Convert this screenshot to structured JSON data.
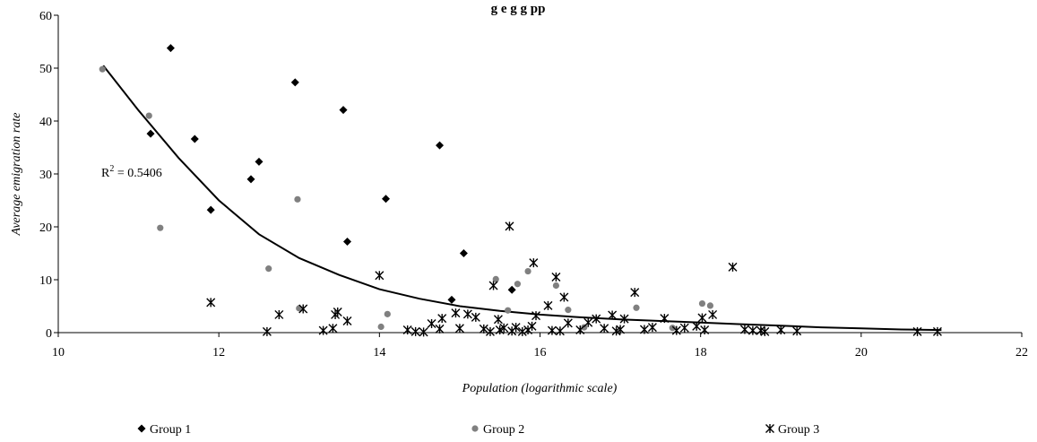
{
  "chart_data": {
    "type": "scatter",
    "title": "g  e  g  g     pp",
    "xlabel": "Population (logarithmic scale)",
    "ylabel": "Average emigration rate",
    "xlim": [
      10,
      22
    ],
    "ylim": [
      0,
      60
    ],
    "xticks": [
      "10",
      "12",
      "14",
      "16",
      "18",
      "20",
      "22"
    ],
    "yticks": [
      "0",
      "10",
      "20",
      "30",
      "40",
      "50",
      "60"
    ],
    "grid": false,
    "legend_position": "bottom",
    "annotation": "R² = 0.5406",
    "trendline": {
      "type": "exponential",
      "points": [
        [
          10.56,
          50.5
        ],
        [
          11.0,
          42.0
        ],
        [
          11.5,
          33.0
        ],
        [
          12.0,
          25.0
        ],
        [
          12.5,
          18.6
        ],
        [
          13.0,
          14.1
        ],
        [
          13.5,
          10.9
        ],
        [
          14.0,
          8.2
        ],
        [
          14.5,
          6.4
        ],
        [
          15.0,
          5.0
        ],
        [
          15.5,
          4.1
        ],
        [
          16.0,
          3.4
        ],
        [
          16.5,
          2.9
        ],
        [
          17.0,
          2.5
        ],
        [
          17.5,
          2.2
        ],
        [
          18.0,
          1.9
        ],
        [
          18.5,
          1.6
        ],
        [
          19.0,
          1.3
        ],
        [
          19.5,
          1.0
        ],
        [
          20.0,
          0.8
        ],
        [
          20.5,
          0.6
        ],
        [
          21.0,
          0.5
        ]
      ]
    },
    "series": [
      {
        "name": "Group 1",
        "marker": "diamond",
        "color": "#000000",
        "points": [
          [
            11.4,
            53.8
          ],
          [
            11.15,
            37.6
          ],
          [
            11.7,
            36.6
          ],
          [
            12.5,
            32.3
          ],
          [
            12.4,
            29.0
          ],
          [
            11.9,
            23.2
          ],
          [
            12.95,
            47.3
          ],
          [
            13.55,
            42.1
          ],
          [
            13.6,
            17.2
          ],
          [
            14.08,
            25.3
          ],
          [
            14.75,
            35.4
          ],
          [
            14.9,
            6.2
          ],
          [
            15.05,
            15.0
          ],
          [
            15.65,
            8.1
          ]
        ]
      },
      {
        "name": "Group 2",
        "marker": "circle",
        "color": "#808080",
        "points": [
          [
            10.55,
            49.8
          ],
          [
            11.13,
            41.0
          ],
          [
            11.27,
            19.8
          ],
          [
            12.62,
            12.1
          ],
          [
            12.98,
            25.2
          ],
          [
            13.0,
            4.6
          ],
          [
            14.02,
            1.1
          ],
          [
            14.1,
            3.5
          ],
          [
            15.45,
            10.1
          ],
          [
            15.6,
            4.2
          ],
          [
            15.72,
            9.2
          ],
          [
            15.85,
            11.6
          ],
          [
            16.2,
            8.9
          ],
          [
            16.35,
            4.3
          ],
          [
            16.55,
            1.0
          ],
          [
            17.2,
            4.7
          ],
          [
            17.65,
            0.9
          ],
          [
            18.02,
            5.5
          ],
          [
            18.12,
            5.1
          ]
        ]
      },
      {
        "name": "Group 3",
        "marker": "star",
        "color": "#000000",
        "points": [
          [
            11.9,
            5.7
          ],
          [
            12.6,
            0.2
          ],
          [
            12.75,
            3.4
          ],
          [
            13.05,
            4.5
          ],
          [
            13.3,
            0.4
          ],
          [
            13.42,
            0.8
          ],
          [
            13.45,
            3.4
          ],
          [
            13.48,
            3.9
          ],
          [
            13.6,
            2.2
          ],
          [
            14.0,
            10.8
          ],
          [
            14.35,
            0.5
          ],
          [
            14.45,
            0.2
          ],
          [
            14.55,
            0.1
          ],
          [
            14.65,
            1.7
          ],
          [
            14.75,
            0.7
          ],
          [
            14.78,
            2.7
          ],
          [
            14.95,
            3.7
          ],
          [
            15.0,
            0.8
          ],
          [
            15.1,
            3.5
          ],
          [
            15.2,
            2.9
          ],
          [
            15.3,
            0.7
          ],
          [
            15.38,
            0.2
          ],
          [
            15.42,
            8.9
          ],
          [
            15.48,
            2.5
          ],
          [
            15.5,
            0.5
          ],
          [
            15.55,
            0.9
          ],
          [
            15.62,
            20.1
          ],
          [
            15.65,
            0.3
          ],
          [
            15.7,
            1.0
          ],
          [
            15.78,
            0.2
          ],
          [
            15.85,
            0.5
          ],
          [
            15.9,
            1.2
          ],
          [
            15.92,
            13.2
          ],
          [
            15.95,
            3.2
          ],
          [
            16.1,
            5.1
          ],
          [
            16.15,
            0.4
          ],
          [
            16.2,
            10.5
          ],
          [
            16.25,
            0.3
          ],
          [
            16.3,
            6.7
          ],
          [
            16.35,
            1.8
          ],
          [
            16.5,
            0.5
          ],
          [
            16.6,
            1.9
          ],
          [
            16.7,
            2.6
          ],
          [
            16.8,
            0.8
          ],
          [
            16.9,
            3.3
          ],
          [
            16.95,
            0.3
          ],
          [
            17.0,
            0.6
          ],
          [
            17.05,
            2.6
          ],
          [
            17.18,
            7.6
          ],
          [
            17.3,
            0.6
          ],
          [
            17.4,
            1.0
          ],
          [
            17.55,
            2.7
          ],
          [
            17.7,
            0.4
          ],
          [
            17.8,
            0.9
          ],
          [
            17.95,
            1.2
          ],
          [
            18.02,
            2.8
          ],
          [
            18.05,
            0.5
          ],
          [
            18.15,
            3.4
          ],
          [
            18.4,
            12.4
          ],
          [
            18.55,
            0.6
          ],
          [
            18.65,
            0.4
          ],
          [
            18.75,
            0.4
          ],
          [
            18.8,
            0.2
          ],
          [
            19.0,
            0.5
          ],
          [
            19.2,
            0.3
          ],
          [
            20.7,
            0.2
          ],
          [
            20.95,
            0.2
          ]
        ]
      }
    ]
  }
}
